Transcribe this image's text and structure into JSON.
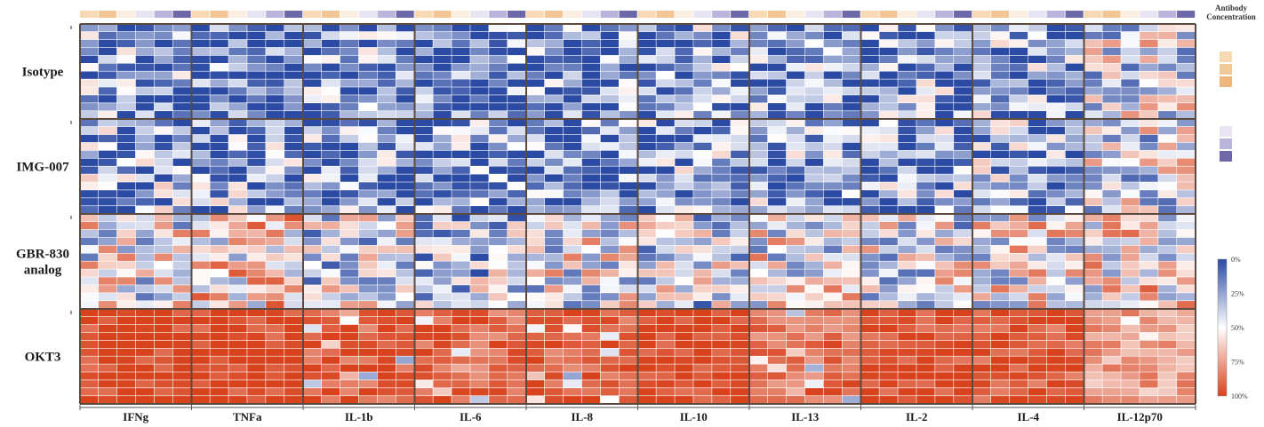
{
  "chart_data": {
    "type": "heatmap",
    "row_groups": [
      "Isotype",
      "IMG-007",
      "GBR-830\nanalog",
      "OKT3"
    ],
    "column_groups": [
      "IFNg",
      "TNFa",
      "IL-1b",
      "IL-6",
      "IL-8",
      "IL-10",
      "IL-13",
      "IL-2",
      "IL-4",
      "IL-12p70"
    ],
    "rows_per_group": 12,
    "cols_per_group": 6,
    "antibody_concentration_legend_title": "Antibody\nConcentration",
    "colorscale": {
      "low_color": "#2b4aa3",
      "mid_color": "#ffffff",
      "high_color": "#d8431e",
      "range": [
        -1,
        1
      ],
      "tick_labels": [
        "0%",
        "25%",
        "50%",
        "75%",
        "100%"
      ]
    },
    "group_levels": [
      [
        -0.55,
        -0.75,
        -0.6,
        -0.7,
        -0.65,
        -0.55,
        -0.6,
        -0.55,
        -0.5,
        -0.1
      ],
      [
        -0.45,
        -0.5,
        -0.6,
        -0.6,
        -0.7,
        -0.5,
        -0.55,
        -0.55,
        -0.45,
        -0.1
      ],
      [
        -0.05,
        0.2,
        -0.15,
        -0.3,
        -0.05,
        -0.2,
        0.0,
        -0.1,
        0.05,
        0.1
      ],
      [
        1.0,
        1.0,
        0.85,
        0.8,
        0.85,
        1.0,
        0.75,
        0.95,
        0.9,
        0.5
      ]
    ]
  }
}
